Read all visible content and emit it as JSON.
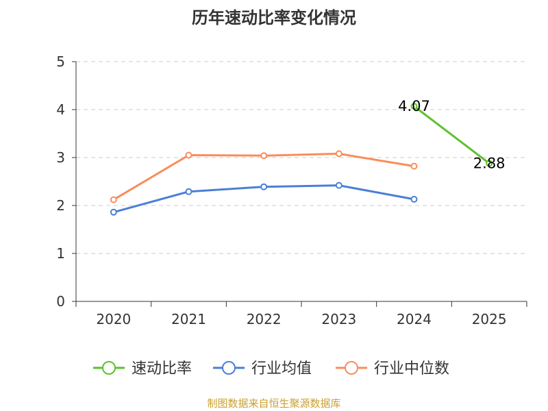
{
  "chart_data": {
    "type": "line",
    "title": "历年速动比率变化情况",
    "categories": [
      "2020",
      "2021",
      "2022",
      "2023",
      "2024",
      "2025"
    ],
    "ylim": [
      0,
      5
    ],
    "yticks": [
      "0",
      "1",
      "2",
      "3",
      "4",
      "5"
    ],
    "xlabel": "",
    "ylabel": "",
    "grid": "horizontal dashed",
    "legend_position": "bottom",
    "series": [
      {
        "name": "速动比率",
        "color": "#5cc12c",
        "values": [
          null,
          null,
          null,
          null,
          4.07,
          2.88
        ],
        "labels": [
          null,
          null,
          null,
          null,
          "4.07",
          "2.88"
        ]
      },
      {
        "name": "行业均值",
        "color": "#4a7fd6",
        "values": [
          1.86,
          2.29,
          2.39,
          2.42,
          2.13,
          null
        ]
      },
      {
        "name": "行业中位数",
        "color": "#fa8c5a",
        "values": [
          2.12,
          3.05,
          3.04,
          3.08,
          2.82,
          null
        ]
      }
    ]
  },
  "footer": {
    "source": "制图数据来自恒生聚源数据库"
  }
}
